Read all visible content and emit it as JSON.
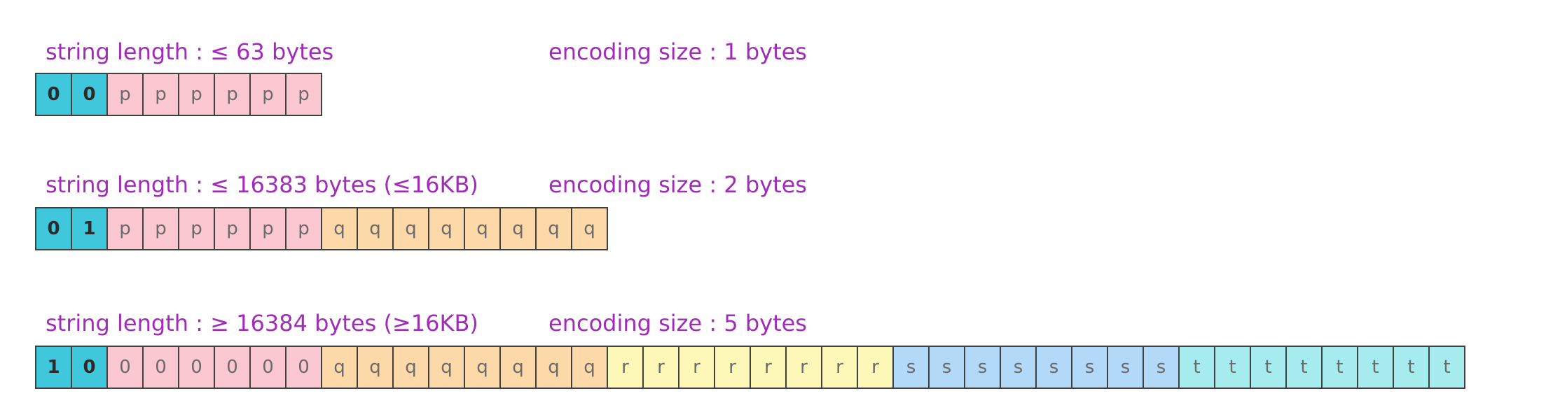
{
  "colors": {
    "header": "#3fc7dc",
    "p": "#fbc8d1",
    "q": "#fdd9aa",
    "r": "#fdf7b8",
    "s": "#b3d9f8",
    "t": "#a6ecee",
    "label_text": "#a02cb8"
  },
  "rows": [
    {
      "length_label": "string length : ≤ 63 bytes",
      "size_label": "encoding size : 1 bytes",
      "cells": [
        {
          "text": "0",
          "color": "header",
          "bold": true
        },
        {
          "text": "0",
          "color": "header",
          "bold": true
        },
        {
          "text": "p",
          "color": "p"
        },
        {
          "text": "p",
          "color": "p"
        },
        {
          "text": "p",
          "color": "p"
        },
        {
          "text": "p",
          "color": "p"
        },
        {
          "text": "p",
          "color": "p"
        },
        {
          "text": "p",
          "color": "p"
        }
      ]
    },
    {
      "length_label": "string length : ≤ 16383 bytes (≤16KB)",
      "size_label": "encoding size : 2 bytes",
      "cells": [
        {
          "text": "0",
          "color": "header",
          "bold": true
        },
        {
          "text": "1",
          "color": "header",
          "bold": true
        },
        {
          "text": "p",
          "color": "p"
        },
        {
          "text": "p",
          "color": "p"
        },
        {
          "text": "p",
          "color": "p"
        },
        {
          "text": "p",
          "color": "p"
        },
        {
          "text": "p",
          "color": "p"
        },
        {
          "text": "p",
          "color": "p"
        },
        {
          "text": "q",
          "color": "q"
        },
        {
          "text": "q",
          "color": "q"
        },
        {
          "text": "q",
          "color": "q"
        },
        {
          "text": "q",
          "color": "q"
        },
        {
          "text": "q",
          "color": "q"
        },
        {
          "text": "q",
          "color": "q"
        },
        {
          "text": "q",
          "color": "q"
        },
        {
          "text": "q",
          "color": "q"
        }
      ]
    },
    {
      "length_label": "string length : ≥ 16384 bytes (≥16KB)",
      "size_label": "encoding size : 5 bytes",
      "cells": [
        {
          "text": "1",
          "color": "header",
          "bold": true
        },
        {
          "text": "0",
          "color": "header",
          "bold": true
        },
        {
          "text": "0",
          "color": "p"
        },
        {
          "text": "0",
          "color": "p"
        },
        {
          "text": "0",
          "color": "p"
        },
        {
          "text": "0",
          "color": "p"
        },
        {
          "text": "0",
          "color": "p"
        },
        {
          "text": "0",
          "color": "p"
        },
        {
          "text": "q",
          "color": "q"
        },
        {
          "text": "q",
          "color": "q"
        },
        {
          "text": "q",
          "color": "q"
        },
        {
          "text": "q",
          "color": "q"
        },
        {
          "text": "q",
          "color": "q"
        },
        {
          "text": "q",
          "color": "q"
        },
        {
          "text": "q",
          "color": "q"
        },
        {
          "text": "q",
          "color": "q"
        },
        {
          "text": "r",
          "color": "r"
        },
        {
          "text": "r",
          "color": "r"
        },
        {
          "text": "r",
          "color": "r"
        },
        {
          "text": "r",
          "color": "r"
        },
        {
          "text": "r",
          "color": "r"
        },
        {
          "text": "r",
          "color": "r"
        },
        {
          "text": "r",
          "color": "r"
        },
        {
          "text": "r",
          "color": "r"
        },
        {
          "text": "s",
          "color": "s"
        },
        {
          "text": "s",
          "color": "s"
        },
        {
          "text": "s",
          "color": "s"
        },
        {
          "text": "s",
          "color": "s"
        },
        {
          "text": "s",
          "color": "s"
        },
        {
          "text": "s",
          "color": "s"
        },
        {
          "text": "s",
          "color": "s"
        },
        {
          "text": "s",
          "color": "s"
        },
        {
          "text": "t",
          "color": "t"
        },
        {
          "text": "t",
          "color": "t"
        },
        {
          "text": "t",
          "color": "t"
        },
        {
          "text": "t",
          "color": "t"
        },
        {
          "text": "t",
          "color": "t"
        },
        {
          "text": "t",
          "color": "t"
        },
        {
          "text": "t",
          "color": "t"
        },
        {
          "text": "t",
          "color": "t"
        }
      ]
    }
  ]
}
